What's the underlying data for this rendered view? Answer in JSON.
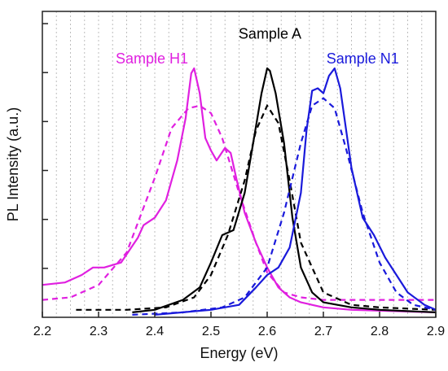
{
  "chart_data": {
    "type": "line",
    "title": "",
    "xlabel": "Energy (eV)",
    "ylabel": "PL Intensity (a.u.)",
    "xlim": [
      2.2,
      2.9
    ],
    "ylim": [
      0,
      1.0
    ],
    "x_ticks": [
      2.2,
      2.3,
      2.4,
      2.5,
      2.6,
      2.7,
      2.8,
      2.9
    ],
    "x_tick_labels": [
      "2.2",
      "2.3",
      "2.4",
      "2.5",
      "2.6",
      "2.7",
      "2.8",
      "2.9"
    ],
    "y_tick_count": 6,
    "y_tick_labels_shown": false,
    "vertical_grid": true,
    "grid_step": 0.025,
    "series": [
      {
        "name": "Sample H1",
        "color": "#e020e0",
        "style": "solid",
        "x": [
          2.2,
          2.24,
          2.27,
          2.29,
          2.31,
          2.34,
          2.37,
          2.38,
          2.4,
          2.42,
          2.44,
          2.455,
          2.465,
          2.47,
          2.48,
          2.49,
          2.5,
          2.51,
          2.525,
          2.535,
          2.545,
          2.56,
          2.58,
          2.6,
          2.62,
          2.64,
          2.66,
          2.7,
          2.75,
          2.9
        ],
        "y": [
          0.13,
          0.14,
          0.17,
          0.2,
          0.2,
          0.22,
          0.32,
          0.37,
          0.4,
          0.47,
          0.63,
          0.8,
          0.98,
          1.0,
          0.9,
          0.72,
          0.67,
          0.63,
          0.68,
          0.66,
          0.56,
          0.42,
          0.3,
          0.2,
          0.12,
          0.08,
          0.06,
          0.04,
          0.03,
          0.02
        ]
      },
      {
        "name": "",
        "color": "#e020e0",
        "style": "dashed",
        "x": [
          2.2,
          2.25,
          2.3,
          2.35,
          2.4,
          2.43,
          2.46,
          2.48,
          2.5,
          2.52,
          2.55,
          2.58,
          2.6,
          2.63,
          2.66,
          2.7,
          2.75,
          2.9
        ],
        "y": [
          0.07,
          0.08,
          0.13,
          0.26,
          0.56,
          0.76,
          0.84,
          0.85,
          0.82,
          0.72,
          0.5,
          0.3,
          0.18,
          0.1,
          0.08,
          0.07,
          0.07,
          0.07
        ]
      },
      {
        "name": "Sample A",
        "color": "#000000",
        "style": "solid",
        "x": [
          2.36,
          2.4,
          2.45,
          2.48,
          2.5,
          2.52,
          2.54,
          2.56,
          2.575,
          2.59,
          2.6,
          2.605,
          2.615,
          2.63,
          2.645,
          2.66,
          2.68,
          2.7,
          2.75,
          2.8,
          2.9
        ],
        "y": [
          0.02,
          0.03,
          0.07,
          0.12,
          0.22,
          0.33,
          0.35,
          0.5,
          0.7,
          0.9,
          1.0,
          0.99,
          0.9,
          0.7,
          0.4,
          0.2,
          0.1,
          0.06,
          0.04,
          0.03,
          0.02
        ]
      },
      {
        "name": "",
        "color": "#000000",
        "style": "dashed",
        "x": [
          2.26,
          2.35,
          2.42,
          2.47,
          2.5,
          2.53,
          2.56,
          2.58,
          2.6,
          2.62,
          2.64,
          2.66,
          2.7,
          2.75,
          2.8,
          2.9
        ],
        "y": [
          0.03,
          0.03,
          0.04,
          0.08,
          0.17,
          0.33,
          0.55,
          0.75,
          0.85,
          0.78,
          0.55,
          0.3,
          0.1,
          0.05,
          0.04,
          0.03
        ]
      },
      {
        "name": "Sample N1",
        "color": "#1a1adb",
        "style": "solid",
        "x": [
          2.4,
          2.5,
          2.55,
          2.58,
          2.6,
          2.62,
          2.64,
          2.66,
          2.67,
          2.68,
          2.69,
          2.7,
          2.71,
          2.72,
          2.73,
          2.75,
          2.77,
          2.79,
          2.81,
          2.85,
          2.88,
          2.9
        ],
        "y": [
          0.01,
          0.03,
          0.05,
          0.12,
          0.17,
          0.2,
          0.28,
          0.5,
          0.75,
          0.91,
          0.92,
          0.9,
          0.97,
          1.0,
          0.92,
          0.6,
          0.4,
          0.33,
          0.24,
          0.1,
          0.05,
          0.03
        ]
      },
      {
        "name": "",
        "color": "#1a1adb",
        "style": "dashed",
        "x": [
          2.36,
          2.45,
          2.52,
          2.56,
          2.6,
          2.63,
          2.66,
          2.68,
          2.7,
          2.72,
          2.74,
          2.77,
          2.8,
          2.83,
          2.86,
          2.9
        ],
        "y": [
          0.01,
          0.02,
          0.04,
          0.08,
          0.2,
          0.42,
          0.7,
          0.85,
          0.88,
          0.84,
          0.68,
          0.42,
          0.22,
          0.1,
          0.05,
          0.03
        ]
      }
    ],
    "annotations": [
      {
        "text": "Sample H1",
        "x": 2.395,
        "y": 1.02,
        "color": "#e020e0"
      },
      {
        "text": "Sample A",
        "x": 2.605,
        "y": 1.12,
        "color": "#000000"
      },
      {
        "text": "Sample N1",
        "x": 2.77,
        "y": 1.02,
        "color": "#1a1adb"
      }
    ]
  }
}
